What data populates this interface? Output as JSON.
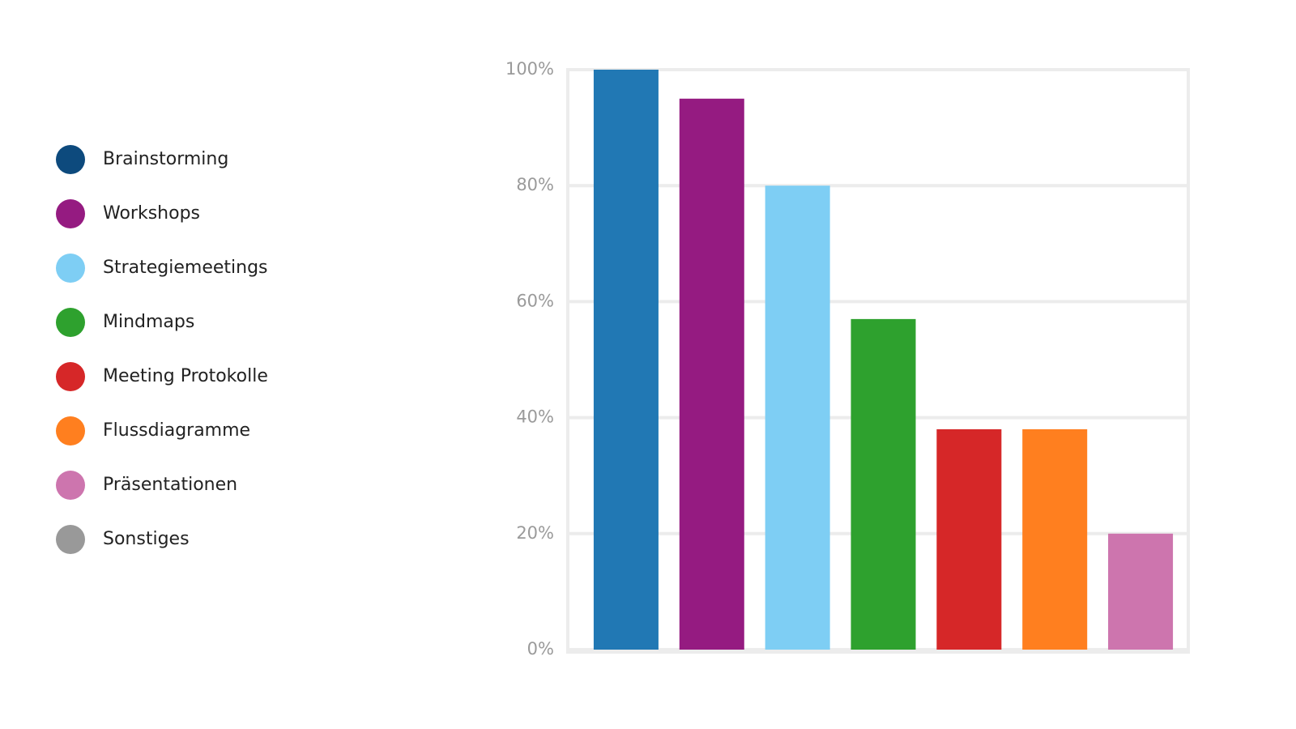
{
  "chart_data": {
    "type": "bar",
    "categories": [
      "Brainstorming",
      "Workshops",
      "Strategiemeetings",
      "Mindmaps",
      "Meeting Protokolle",
      "Flussdiagramme",
      "Präsentationen",
      "Sonstiges"
    ],
    "values": [
      100,
      95,
      80,
      57,
      38,
      38,
      20,
      null
    ],
    "colors": [
      "#2178b4",
      "#951b81",
      "#7ecef4",
      "#2ea12e",
      "#d62728",
      "#ff7f1f",
      "#cd75ae",
      "#999999"
    ],
    "legend_colors": [
      "#0d4a7d",
      "#951b81",
      "#7ecef4",
      "#2ea12e",
      "#d62728",
      "#ff7f1f",
      "#cd75ae",
      "#999999"
    ],
    "ylim": [
      0,
      100
    ],
    "yticks": [
      {
        "value": 0,
        "label": "0%"
      },
      {
        "value": 20,
        "label": "20%"
      },
      {
        "value": 40,
        "label": "40%"
      },
      {
        "value": 60,
        "label": "60%"
      },
      {
        "value": 80,
        "label": "80%"
      },
      {
        "value": 100,
        "label": "100%"
      }
    ],
    "grid": true,
    "legend": "left"
  }
}
